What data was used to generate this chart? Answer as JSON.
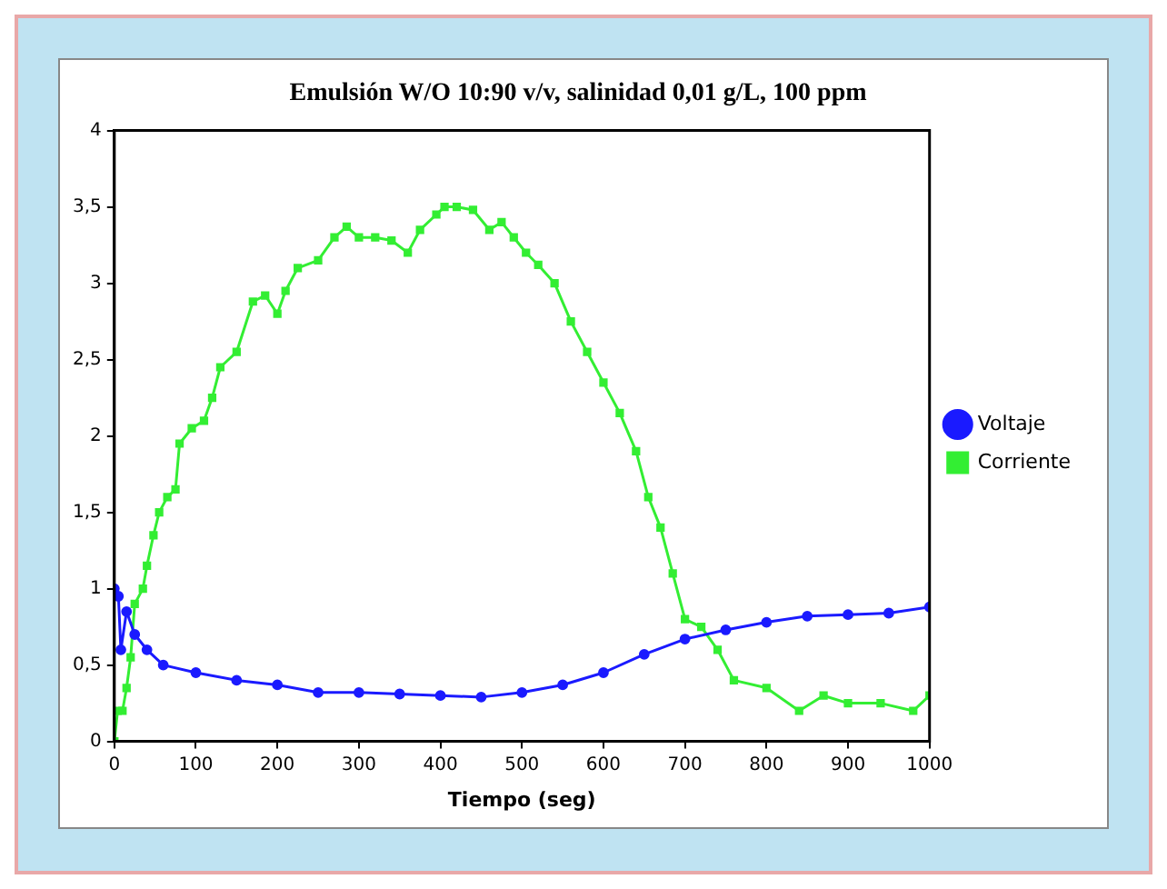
{
  "chart_data": {
    "type": "line",
    "title": "Emulsión W/O 10:90 v/v, salinidad 0,01 g/L, 100 ppm",
    "xlabel": "Tiempo (seg)",
    "xlim": [
      0,
      1000
    ],
    "xticks": [
      0,
      100,
      200,
      300,
      400,
      500,
      600,
      700,
      800,
      900,
      1000
    ],
    "ylim": [
      0,
      4
    ],
    "yticks": [
      0,
      {
        "value": 0.5,
        "label": "0,5"
      },
      1,
      {
        "value": 1.5,
        "label": "1,5"
      },
      2,
      {
        "value": 2.5,
        "label": "2,5"
      },
      3,
      {
        "value": 3.5,
        "label": "3,5"
      },
      4
    ],
    "grid": false,
    "legend": "right",
    "line_style": "solid",
    "series": [
      {
        "name": "Voltaje",
        "color": "#1a1aff",
        "marker": "circle",
        "x": [
          0,
          5,
          8,
          15,
          25,
          40,
          60,
          100,
          150,
          200,
          250,
          300,
          350,
          400,
          450,
          500,
          550,
          600,
          650,
          700,
          750,
          800,
          850,
          900,
          950,
          1000
        ],
        "values": [
          1.0,
          0.95,
          0.6,
          0.85,
          0.7,
          0.6,
          0.5,
          0.45,
          0.4,
          0.37,
          0.32,
          0.32,
          0.31,
          0.3,
          0.29,
          0.32,
          0.37,
          0.45,
          0.57,
          0.67,
          0.73,
          0.78,
          0.82,
          0.83,
          0.84,
          0.88
        ]
      },
      {
        "name": "Corriente",
        "color": "#33ee33",
        "marker": "square",
        "x": [
          0,
          4,
          10,
          15,
          20,
          25,
          35,
          40,
          48,
          55,
          65,
          75,
          80,
          95,
          110,
          120,
          130,
          150,
          170,
          185,
          200,
          210,
          225,
          250,
          270,
          285,
          300,
          320,
          340,
          360,
          375,
          395,
          405,
          420,
          440,
          460,
          475,
          490,
          505,
          520,
          540,
          560,
          580,
          600,
          620,
          640,
          655,
          670,
          685,
          700,
          720,
          740,
          760,
          800,
          840,
          870,
          900,
          940,
          980,
          1000
        ],
        "values": [
          0,
          0.2,
          0.2,
          0.35,
          0.55,
          0.9,
          1.0,
          1.15,
          1.35,
          1.5,
          1.6,
          1.65,
          1.95,
          2.05,
          2.1,
          2.25,
          2.45,
          2.55,
          2.88,
          2.92,
          2.8,
          2.95,
          3.1,
          3.15,
          3.3,
          3.37,
          3.3,
          3.3,
          3.28,
          3.2,
          3.35,
          3.45,
          3.5,
          3.5,
          3.48,
          3.35,
          3.4,
          3.3,
          3.2,
          3.12,
          3.0,
          2.75,
          2.55,
          2.35,
          2.15,
          1.9,
          1.6,
          1.4,
          1.1,
          0.8,
          0.75,
          0.6,
          0.4,
          0.35,
          0.2,
          0.3,
          0.25,
          0.25,
          0.2,
          0.3
        ]
      }
    ]
  }
}
